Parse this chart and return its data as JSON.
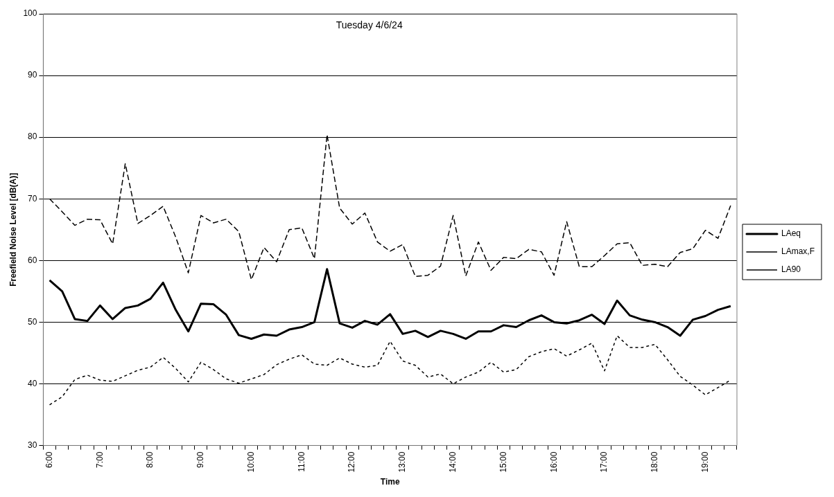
{
  "chart_data": {
    "type": "line",
    "title": "Tuesday 4/6/24",
    "xlabel": "Time",
    "ylabel": "Freefield Noise Level [dB(A)]",
    "categories": [
      "6:00",
      null,
      null,
      null,
      "7:00",
      null,
      null,
      null,
      "8:00",
      null,
      null,
      null,
      "9:00",
      null,
      null,
      null,
      "10:00",
      null,
      null,
      null,
      "11:00",
      null,
      null,
      null,
      "12:00",
      null,
      null,
      null,
      "13:00",
      null,
      null,
      null,
      "14:00",
      null,
      null,
      null,
      "15:00",
      null,
      null,
      null,
      "16:00",
      null,
      null,
      null,
      "17:00",
      null,
      null,
      null,
      "18:00",
      null,
      null,
      null,
      "19:00",
      null,
      null
    ],
    "series": [
      {
        "name": "LAeq",
        "color": "#000000",
        "line_style": "solid",
        "values": [
          56.8,
          55.0,
          50.5,
          50.2,
          52.7,
          50.5,
          52.3,
          52.7,
          53.8,
          56.4,
          52.0,
          48.5,
          53.0,
          52.9,
          51.2,
          47.9,
          47.3,
          48.0,
          47.8,
          48.8,
          49.2,
          50.0,
          58.6,
          49.8,
          49.1,
          50.2,
          49.6,
          51.3,
          48.1,
          48.6,
          47.6,
          48.6,
          48.1,
          47.3,
          48.5,
          48.5,
          49.5,
          49.2,
          50.3,
          51.1,
          50.0,
          49.8,
          50.3,
          51.2,
          49.7,
          53.5,
          51.1,
          50.4,
          50.0,
          49.2,
          47.8,
          50.4,
          51.0,
          52.0,
          52.6
        ]
      },
      {
        "name": "LAmax,F",
        "color": "#000000",
        "line_style": "dashed",
        "values": [
          70.0,
          67.9,
          65.7,
          66.7,
          66.6,
          62.7,
          75.7,
          66.0,
          67.3,
          68.8,
          63.8,
          58.0,
          67.3,
          66.1,
          66.7,
          64.7,
          56.9,
          62.1,
          59.8,
          65.0,
          65.3,
          60.3,
          80.4,
          68.5,
          65.9,
          67.7,
          63.0,
          61.5,
          62.6,
          57.4,
          57.6,
          59.1,
          67.3,
          57.5,
          63.0,
          58.4,
          60.5,
          60.3,
          61.8,
          61.4,
          57.6,
          66.3,
          59.0,
          59.0,
          60.8,
          62.7,
          62.9,
          59.2,
          59.4,
          59.0,
          61.3,
          61.9,
          64.9,
          63.6,
          68.9
        ]
      },
      {
        "name": "LA90",
        "color": "#000000",
        "line_style": "dotted",
        "values": [
          36.6,
          37.9,
          40.7,
          41.4,
          40.6,
          40.4,
          41.3,
          42.2,
          42.7,
          44.3,
          42.5,
          40.3,
          43.5,
          42.3,
          40.8,
          40.1,
          40.8,
          41.5,
          43.1,
          44.0,
          44.7,
          43.2,
          43.0,
          44.2,
          43.2,
          42.7,
          43.0,
          46.9,
          43.7,
          43.0,
          41.1,
          41.6,
          40.0,
          41.1,
          41.9,
          43.5,
          41.9,
          42.3,
          44.4,
          45.2,
          45.7,
          44.5,
          45.5,
          46.6,
          42.1,
          47.8,
          45.9,
          45.9,
          46.4,
          43.9,
          41.2,
          39.8,
          38.2,
          39.4,
          40.6
        ]
      }
    ],
    "ylim": [
      30,
      100
    ],
    "yticks": [
      30,
      40,
      50,
      60,
      70,
      80,
      90,
      100
    ],
    "grid": "y",
    "legend": "right",
    "marker": "none"
  }
}
